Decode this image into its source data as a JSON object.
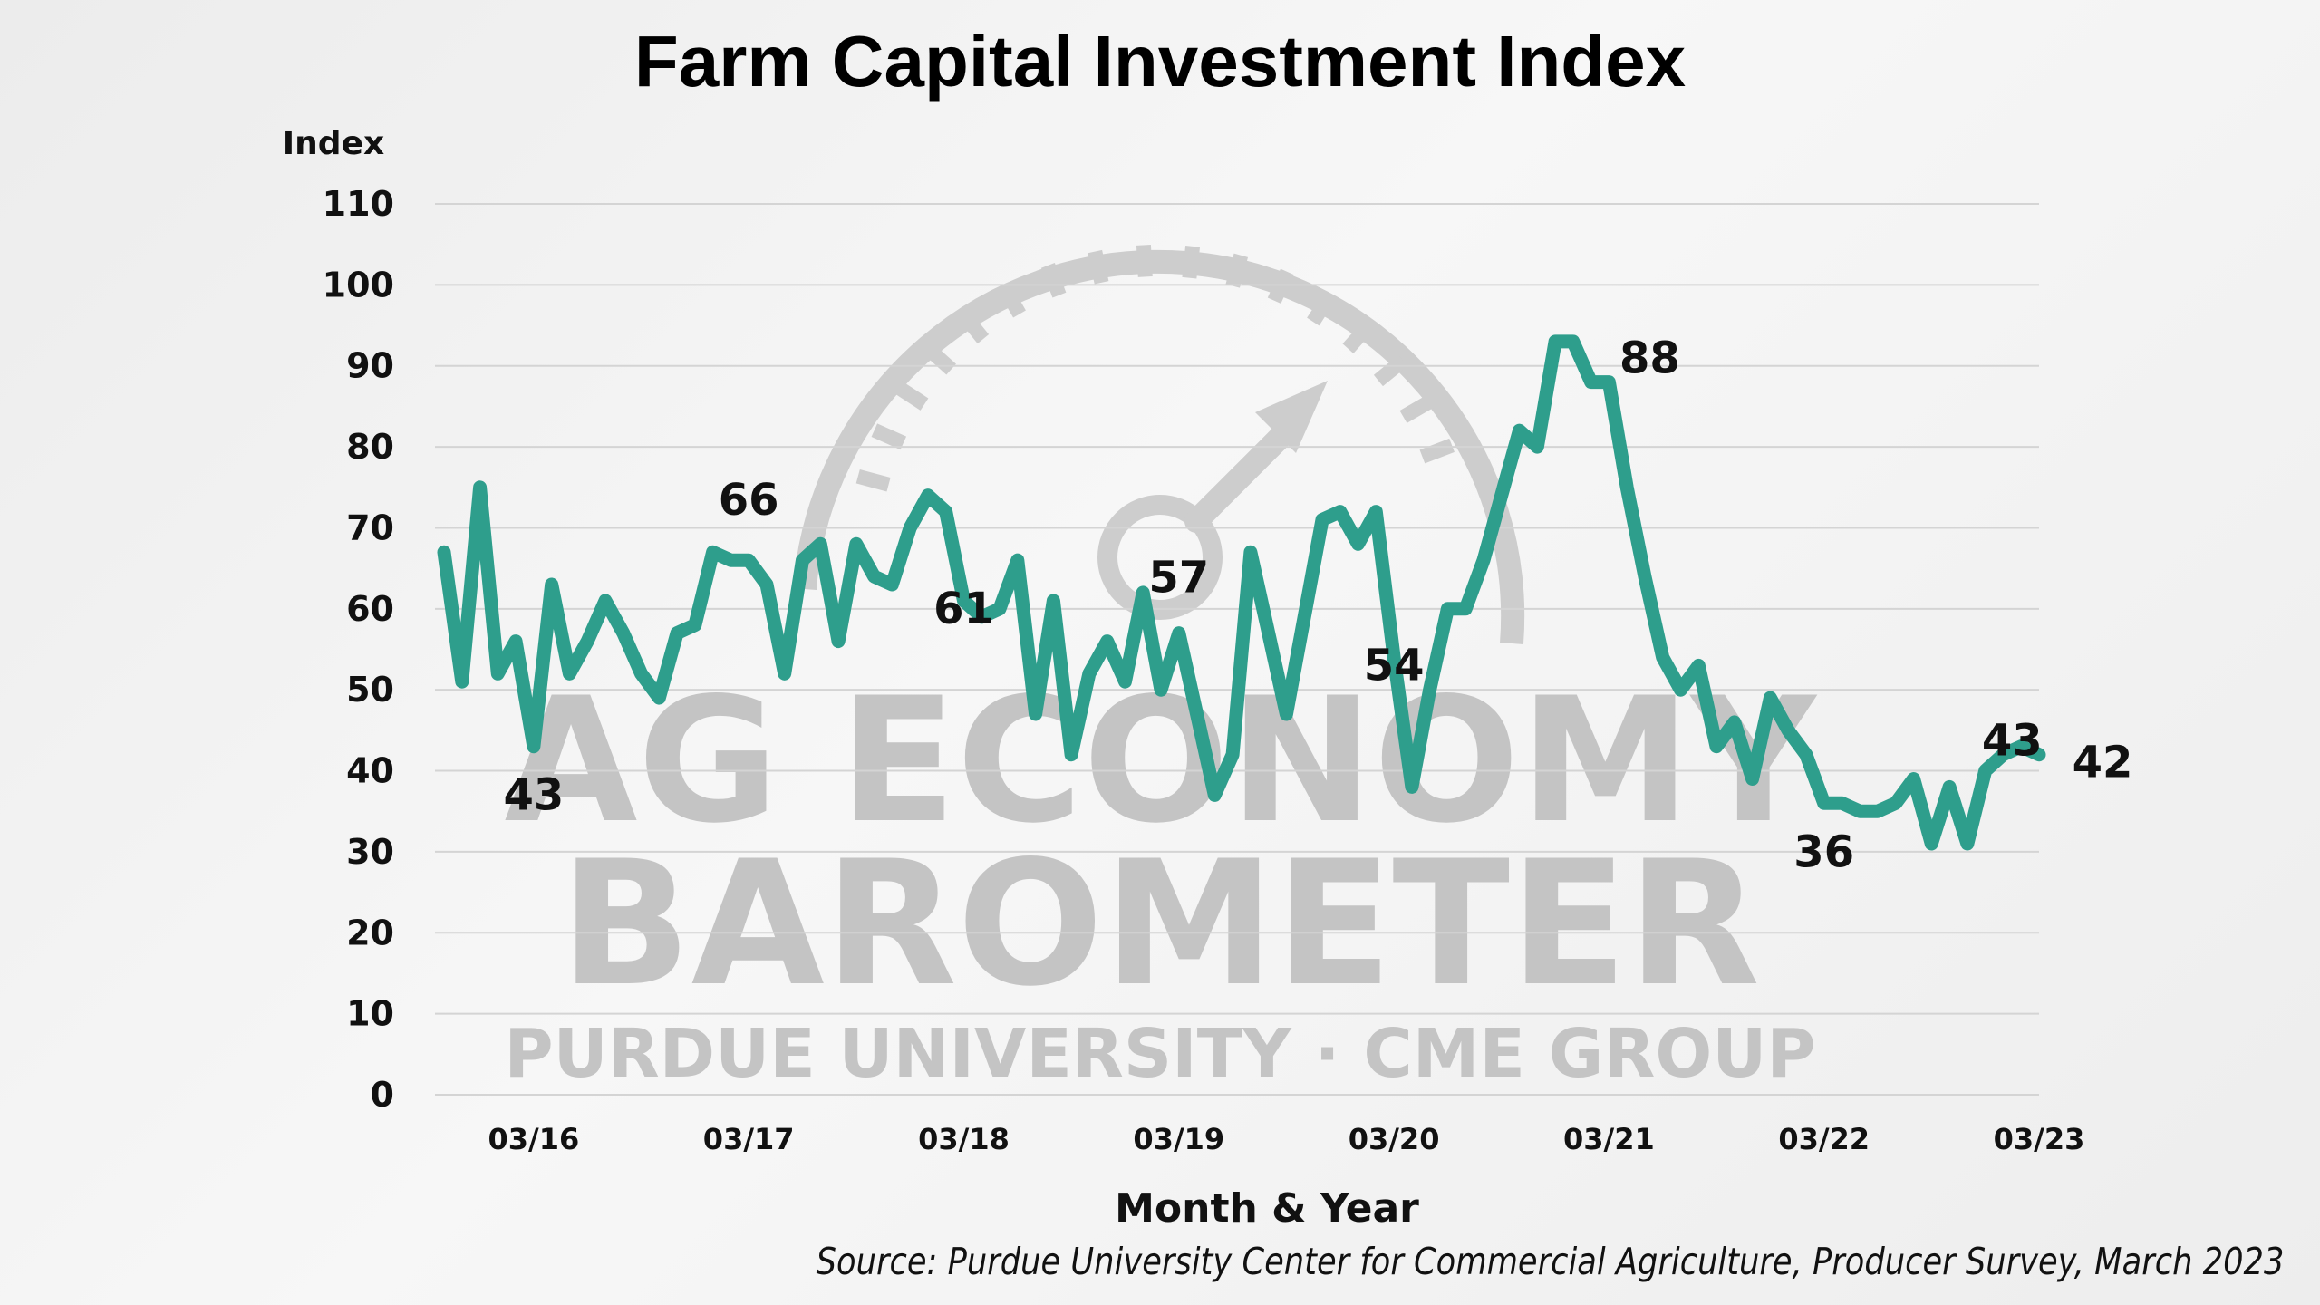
{
  "watermark": {
    "line1": "AG ECONOMY",
    "line2": "BAROMETER",
    "line3": "PURDUE UNIVERSITY · CME GROUP",
    "color": "#c4c4c4"
  },
  "source_text": "Source: Purdue University Center for Commercial Agriculture, Producer Survey, March 2023",
  "chart_data": {
    "type": "line",
    "title": "Farm Capital Investment Index",
    "ylabel": "Index",
    "xlabel": "Month & Year",
    "ylim": [
      0,
      110
    ],
    "yticks": [
      0,
      10,
      20,
      30,
      40,
      50,
      60,
      70,
      80,
      90,
      100,
      110
    ],
    "xticks": [
      {
        "label": "03/16",
        "x": 5
      },
      {
        "label": "03/17",
        "x": 17
      },
      {
        "label": "03/18",
        "x": 29
      },
      {
        "label": "03/19",
        "x": 41
      },
      {
        "label": "03/20",
        "x": 53
      },
      {
        "label": "03/21",
        "x": 65
      },
      {
        "label": "03/22",
        "x": 77
      },
      {
        "label": "03/23",
        "x": 89
      }
    ],
    "grid": true,
    "line_color": "#2e9e8c",
    "series": [
      {
        "values": [
          67,
          51,
          75,
          52,
          56,
          43,
          63,
          52,
          56,
          61,
          57,
          52,
          49,
          57,
          58,
          67,
          66,
          66,
          63,
          52,
          66,
          68,
          56,
          68,
          64,
          63,
          70,
          74,
          72,
          61,
          59,
          60,
          66,
          47,
          61,
          42,
          52,
          56,
          51,
          62,
          50,
          57,
          47,
          37,
          42,
          67,
          57,
          47,
          59,
          71,
          72,
          68,
          72,
          54,
          38,
          50,
          60,
          60,
          66,
          74,
          82,
          80,
          93,
          93,
          88,
          88,
          75,
          64,
          54,
          50,
          53,
          43,
          46,
          39,
          49,
          45,
          42,
          36,
          36,
          35,
          35,
          36,
          39,
          31,
          38,
          31,
          40,
          42,
          43,
          42
        ]
      }
    ],
    "annotations": [
      {
        "text": "43",
        "x": 5,
        "y": 43
      },
      {
        "text": "66",
        "x": 17,
        "y": 66
      },
      {
        "text": "61",
        "x": 29,
        "y": 61
      },
      {
        "text": "57",
        "x": 41,
        "y": 57
      },
      {
        "text": "54",
        "x": 53,
        "y": 54
      },
      {
        "text": "88",
        "x": 65,
        "y": 88
      },
      {
        "text": "36",
        "x": 77,
        "y": 36
      },
      {
        "text": "43",
        "x": 88,
        "y": 43
      },
      {
        "text": "42",
        "x": 89,
        "y": 42
      }
    ]
  }
}
